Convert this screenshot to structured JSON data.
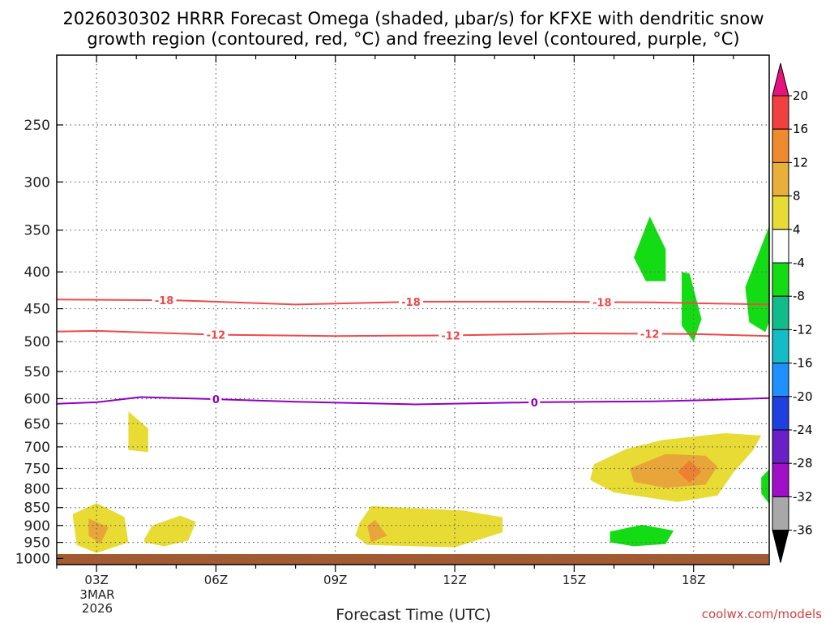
{
  "chart_data": {
    "type": "heatmap",
    "title_line1": "2026030302 HRRR Forecast Omega (shaded, μbar/s) for KFXE with dendritic snow",
    "title_line2": "growth region (contoured, red, °C) and freezing level (contoured, purple, °C)",
    "xlabel": "Forecast Time (UTC)",
    "x_ticks": [
      "03Z",
      "06Z",
      "09Z",
      "12Z",
      "15Z",
      "18Z"
    ],
    "x_tick_hours": [
      3,
      6,
      9,
      12,
      15,
      18
    ],
    "x_range_hours": [
      2,
      19.9
    ],
    "date_label": [
      "3MAR",
      "2026"
    ],
    "y_ticks": [
      250,
      300,
      350,
      400,
      450,
      500,
      550,
      600,
      650,
      700,
      750,
      800,
      850,
      900,
      950,
      1000
    ],
    "y_range_mb": [
      200,
      1020
    ],
    "grid": true,
    "colorbar": {
      "labels": [
        "20",
        "16",
        "12",
        "8",
        "4",
        "-4",
        "-8",
        "-12",
        "-16",
        "-20",
        "-24",
        "-28",
        "-32",
        "-36"
      ],
      "colors": [
        "#e8127e",
        "#f04040",
        "#ef8a2e",
        "#e8b038",
        "#e8dc34",
        "#ffffff",
        "#14dc14",
        "#10bd8a",
        "#14bcc8",
        "#1e90ff",
        "#1e40e0",
        "#6a1fc8",
        "#a010c8",
        "#a8a8a8",
        "#000000"
      ]
    },
    "contours": [
      {
        "name": "-18 °C",
        "color": "#f04848",
        "label": "-18",
        "points": [
          [
            2,
            437
          ],
          [
            5,
            438
          ],
          [
            8,
            444
          ],
          [
            11,
            440
          ],
          [
            14,
            440
          ],
          [
            17,
            441
          ],
          [
            19.9,
            444
          ]
        ],
        "label_hours": [
          4.7,
          10.9,
          15.7
        ]
      },
      {
        "name": "-12 °C",
        "color": "#f04848",
        "label": "-12",
        "points": [
          [
            2,
            484
          ],
          [
            3,
            483
          ],
          [
            6,
            489
          ],
          [
            9,
            491
          ],
          [
            12,
            490
          ],
          [
            15,
            487
          ],
          [
            18,
            488
          ],
          [
            19.9,
            491
          ]
        ],
        "label_hours": [
          6.0,
          11.9,
          16.9
        ]
      },
      {
        "name": "freezing level 0 °C",
        "color": "#9000c0",
        "label": "0",
        "points": [
          [
            2,
            610
          ],
          [
            3,
            607
          ],
          [
            4.1,
            597
          ],
          [
            6,
            601
          ],
          [
            8,
            606
          ],
          [
            11,
            611
          ],
          [
            14,
            607
          ],
          [
            17,
            605
          ],
          [
            18.2,
            603
          ],
          [
            19.9,
            599
          ]
        ],
        "label_hours": [
          6.0,
          14.0
        ]
      }
    ],
    "omega_regions": [
      {
        "sign": "positive",
        "level_ubar_s": 4,
        "points": [
          [
            2.4,
            868
          ],
          [
            3.0,
            838
          ],
          [
            3.7,
            876
          ],
          [
            3.8,
            950
          ],
          [
            3.0,
            983
          ],
          [
            2.5,
            958
          ]
        ]
      },
      {
        "sign": "positive",
        "level_ubar_s": 8,
        "points": [
          [
            2.8,
            880
          ],
          [
            3.3,
            905
          ],
          [
            3.1,
            955
          ],
          [
            2.8,
            930
          ]
        ]
      },
      {
        "sign": "positive",
        "level_ubar_s": 4,
        "points": [
          [
            3.8,
            625
          ],
          [
            4.3,
            660
          ],
          [
            4.3,
            712
          ],
          [
            3.8,
            707
          ]
        ]
      },
      {
        "sign": "positive",
        "level_ubar_s": 4,
        "points": [
          [
            4.4,
            900
          ],
          [
            5.1,
            872
          ],
          [
            5.5,
            890
          ],
          [
            5.3,
            945
          ],
          [
            4.7,
            962
          ],
          [
            4.2,
            950
          ],
          [
            4.2,
            940
          ]
        ]
      },
      {
        "sign": "positive",
        "level_ubar_s": 4,
        "points": [
          [
            9.6,
            894
          ],
          [
            9.9,
            846
          ],
          [
            12.2,
            858
          ],
          [
            13.2,
            877
          ],
          [
            13.2,
            920
          ],
          [
            12.0,
            965
          ],
          [
            9.8,
            958
          ],
          [
            9.5,
            930
          ]
        ]
      },
      {
        "sign": "positive",
        "level_ubar_s": 8,
        "points": [
          [
            9.8,
            902
          ],
          [
            10.0,
            884
          ],
          [
            10.3,
            930
          ],
          [
            9.9,
            950
          ]
        ]
      },
      {
        "sign": "positive",
        "level_ubar_s": 4,
        "points": [
          [
            15.5,
            740
          ],
          [
            16.3,
            705
          ],
          [
            17.2,
            685
          ],
          [
            18.8,
            670
          ],
          [
            19.7,
            675
          ],
          [
            19.5,
            707
          ],
          [
            19.0,
            760
          ],
          [
            18.6,
            818
          ],
          [
            17.6,
            835
          ],
          [
            16.0,
            810
          ],
          [
            15.4,
            778
          ]
        ]
      },
      {
        "sign": "positive",
        "level_ubar_s": 8,
        "points": [
          [
            16.4,
            750
          ],
          [
            17.3,
            716
          ],
          [
            18.3,
            720
          ],
          [
            18.6,
            745
          ],
          [
            18.3,
            790
          ],
          [
            17.3,
            798
          ],
          [
            16.5,
            783
          ]
        ]
      },
      {
        "sign": "positive",
        "level_ubar_s": 12,
        "points": [
          [
            17.6,
            758
          ],
          [
            17.9,
            730
          ],
          [
            18.2,
            758
          ],
          [
            17.9,
            785
          ]
        ]
      },
      {
        "sign": "negative",
        "level_ubar_s": -4,
        "points": [
          [
            16.9,
            335
          ],
          [
            17.3,
            372
          ],
          [
            17.3,
            412
          ],
          [
            16.8,
            412
          ],
          [
            16.5,
            382
          ]
        ]
      },
      {
        "sign": "negative",
        "level_ubar_s": -4,
        "points": [
          [
            17.7,
            400
          ],
          [
            17.9,
            402
          ],
          [
            18.2,
            465
          ],
          [
            18.0,
            500
          ],
          [
            17.7,
            475
          ]
        ]
      },
      {
        "sign": "negative",
        "level_ubar_s": -4,
        "points": [
          [
            19.8,
            357
          ],
          [
            19.9,
            345
          ],
          [
            19.9,
            470
          ],
          [
            19.8,
            485
          ],
          [
            19.4,
            470
          ],
          [
            19.3,
            420
          ]
        ]
      },
      {
        "sign": "negative",
        "level_ubar_s": -4,
        "points": [
          [
            19.9,
            752
          ],
          [
            19.7,
            772
          ],
          [
            19.7,
            812
          ],
          [
            19.9,
            840
          ]
        ]
      },
      {
        "sign": "negative",
        "level_ubar_s": -4,
        "points": [
          [
            15.9,
            918
          ],
          [
            16.7,
            898
          ],
          [
            17.5,
            915
          ],
          [
            17.3,
            955
          ],
          [
            16.5,
            962
          ],
          [
            15.9,
            950
          ]
        ]
      }
    ],
    "surface_band_color": "#a55a30"
  },
  "credit": "coolwx.com/models"
}
